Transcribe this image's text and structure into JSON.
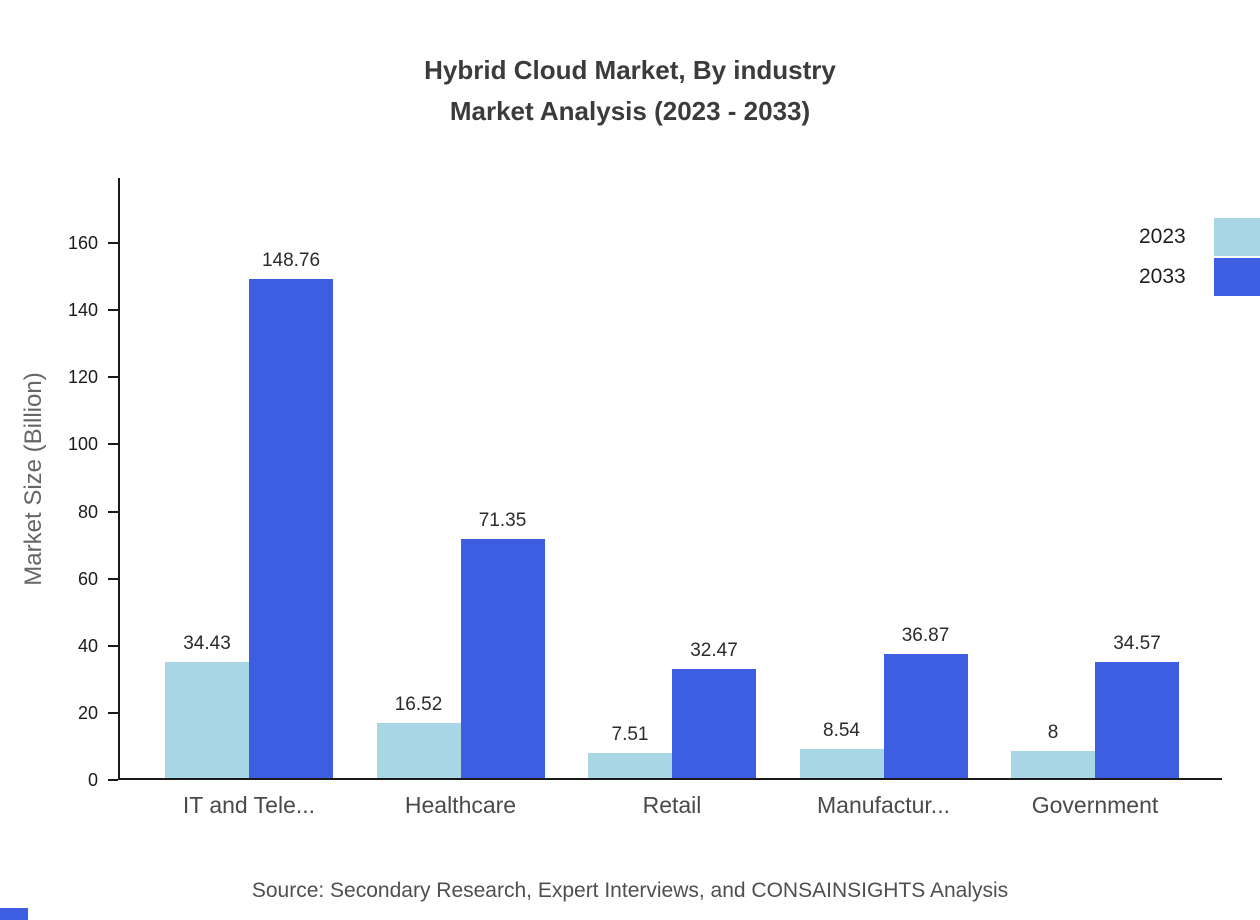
{
  "title": {
    "line1": "Hybrid Cloud Market, By industry",
    "line2": "Market Analysis (2023 - 2033)"
  },
  "ylabel": "Market Size (Billion)",
  "source": "Source: Secondary Research, Expert Interviews, and CONSAINSIGHTS Analysis",
  "colors": {
    "series_2023": "#A9D6E5",
    "series_2033": "#3D5EE0",
    "axis": "#1a1a1a",
    "title_text": "#3b3b3b",
    "background": "#ffffff"
  },
  "chart_data": {
    "type": "bar",
    "title": "Hybrid Cloud Market, By industry Market Analysis (2023 - 2033)",
    "categories": [
      "IT and Tele...",
      "Healthcare",
      "Retail",
      "Manufactur...",
      "Government"
    ],
    "series": [
      {
        "name": "2023",
        "color": "#A9D6E5",
        "values": [
          34.43,
          16.52,
          7.51,
          8.54,
          8
        ],
        "labels": [
          "34.43",
          "16.52",
          "7.51",
          "8.54",
          "8"
        ]
      },
      {
        "name": "2033",
        "color": "#3D5EE0",
        "values": [
          148.76,
          71.35,
          32.47,
          36.87,
          34.57
        ],
        "labels": [
          "148.76",
          "71.35",
          "32.47",
          "36.87",
          "34.57"
        ]
      }
    ],
    "xlabel": "",
    "ylabel": "Market Size (Billion)",
    "ylim": [
      0,
      179
    ],
    "yticks": [
      0,
      20,
      40,
      60,
      80,
      100,
      120,
      140,
      160
    ],
    "grid": false,
    "legend_position": "top-right"
  }
}
